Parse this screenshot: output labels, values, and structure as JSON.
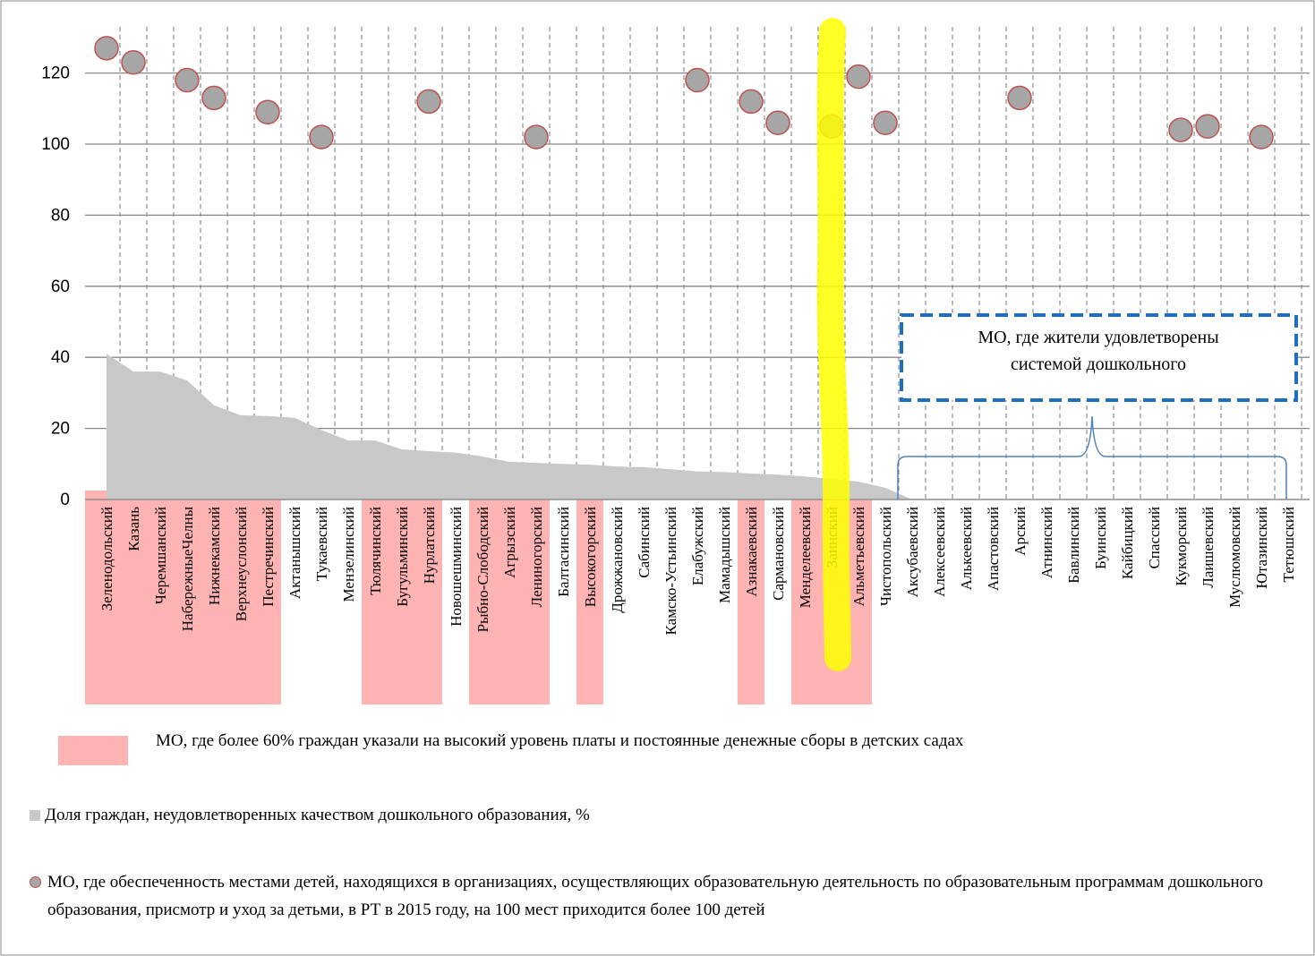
{
  "chart_data": {
    "type": "area_scatter",
    "categories": [
      "Зеленодольский",
      "Казань",
      "Черемшанский",
      "НабережныеЧелны",
      "Нижнекамский",
      "Верхнеуслонский",
      "Пестречинский",
      "Актанышский",
      "Тукаевский",
      "Мензелинский",
      "Тюлячинский",
      "Бугульминский",
      "Нурлатский",
      "Новошешминский",
      "Рыбно-Слободский",
      "Агрызский",
      "Лениногорский",
      "Балтасинский",
      "Высокогорский",
      "Дрожжановский",
      "Сабинский",
      "Камско-Устьинский",
      "Елабужский",
      "Мамадышский",
      "Азнакаевский",
      "Сармановский",
      "Менделеевский",
      "Заинский",
      "Альметьевский",
      "Чистопольский",
      "Аксубаевский",
      "Алексеевский",
      "Алькеевский",
      "Апастовский",
      "Арский",
      "Атнинский",
      "Бавлинский",
      "Буинский",
      "Кайбицкий",
      "Спасский",
      "Кукморский",
      "Лаишевский",
      "Муслюмовский",
      "Ютазинский",
      "Тетюшский"
    ],
    "highlight": [
      true,
      true,
      true,
      true,
      true,
      true,
      true,
      false,
      false,
      false,
      true,
      true,
      true,
      false,
      true,
      true,
      true,
      false,
      true,
      false,
      false,
      false,
      false,
      false,
      true,
      false,
      true,
      true,
      true,
      false,
      false,
      false,
      false,
      false,
      false,
      false,
      false,
      false,
      false,
      false,
      false,
      false,
      false,
      false,
      false
    ],
    "highlight_color": "#ffb3b3",
    "highlight_legend": "МО, где  более 60% граждан указали на высокий уровень платы и постоянные денежные сборы в детских садах",
    "series": [
      {
        "name": "Доля граждан, неудовлетворенных качеством дошкольного образования, %",
        "type": "area",
        "color": "#c8c8c8",
        "values": [
          41,
          36,
          36,
          33.5,
          26.5,
          23.7,
          23.5,
          23,
          19.6,
          16.6,
          16.6,
          14.1,
          13.6,
          13.2,
          12.1,
          10.6,
          10.3,
          10,
          9.8,
          9.3,
          9.1,
          8.5,
          7.9,
          7.7,
          7.3,
          7,
          6.5,
          5.8,
          5,
          3.3,
          0,
          0,
          0,
          0,
          0,
          0,
          0,
          0,
          0,
          0,
          0,
          0,
          0,
          0,
          0
        ]
      },
      {
        "name": "МО, где обеспеченность местами детей, находящихся в организациях, осуществляющих образовательную деятельность по образовательным программам дошкольного образования, присмотр и уход за детьми, в РТ в 2015 году, на 100 мест приходится более 100 детей",
        "type": "scatter",
        "color": "#a6a6a6",
        "edge_color": "#c0504d",
        "values": [
          127,
          123,
          null,
          118,
          113,
          null,
          109,
          null,
          102,
          null,
          null,
          null,
          112,
          null,
          null,
          null,
          102,
          null,
          null,
          null,
          null,
          null,
          118,
          null,
          112,
          106,
          null,
          105,
          119,
          106,
          null,
          null,
          null,
          null,
          113,
          null,
          null,
          null,
          null,
          null,
          104,
          105,
          null,
          102,
          null
        ]
      }
    ],
    "annotation": [
      "МО, где жители удовлетворены",
      "системой дошкольного"
    ],
    "ylim": [
      0,
      133
    ],
    "yticks": [
      0,
      20,
      40,
      60,
      80,
      100,
      120
    ],
    "grid": true
  }
}
